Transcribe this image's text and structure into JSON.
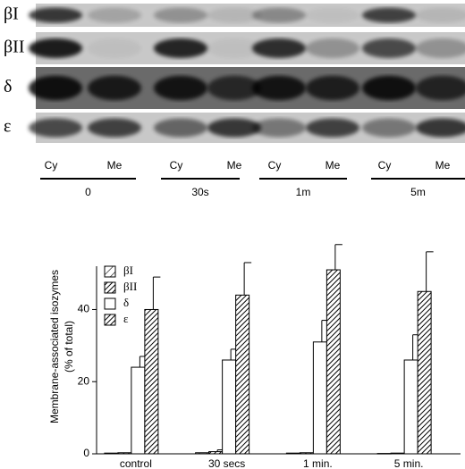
{
  "blot": {
    "rows": [
      "βI",
      "βII",
      "δ",
      "ε"
    ],
    "lanes": [
      "Cy",
      "Me",
      "Cy",
      "Me",
      "Cy",
      "Me",
      "Cy",
      "Me"
    ],
    "timepoints": [
      "0",
      "30s",
      "1m",
      "5m"
    ]
  },
  "chart_data": {
    "type": "bar",
    "ylabel": [
      "Membrane-associated isozymes",
      "(% of total)"
    ],
    "categories": [
      "control",
      "30 secs",
      "1 min.",
      "5 min."
    ],
    "series": [
      {
        "name": "βI",
        "color": "#000000",
        "pattern": "hatch-light",
        "values": [
          0.2,
          0.3,
          0.2,
          0.1
        ],
        "errors": [
          0,
          0,
          0,
          0
        ]
      },
      {
        "name": "βII",
        "color": "#000000",
        "pattern": "hatch-dense",
        "values": [
          0.3,
          0.6,
          0.3,
          0.2
        ],
        "errors": [
          0,
          0.5,
          0,
          0
        ]
      },
      {
        "name": "δ",
        "color": "#000000",
        "pattern": "none",
        "values": [
          24,
          26,
          31,
          26
        ],
        "errors": [
          3,
          3,
          6,
          7
        ]
      },
      {
        "name": "ε",
        "color": "#000000",
        "pattern": "hatch-dense",
        "values": [
          40,
          44,
          51,
          45
        ],
        "errors": [
          9,
          9,
          7,
          11
        ]
      }
    ],
    "ylim": [
      0,
      52
    ],
    "yticks": [
      0,
      20,
      40
    ],
    "legend": "top-left"
  }
}
